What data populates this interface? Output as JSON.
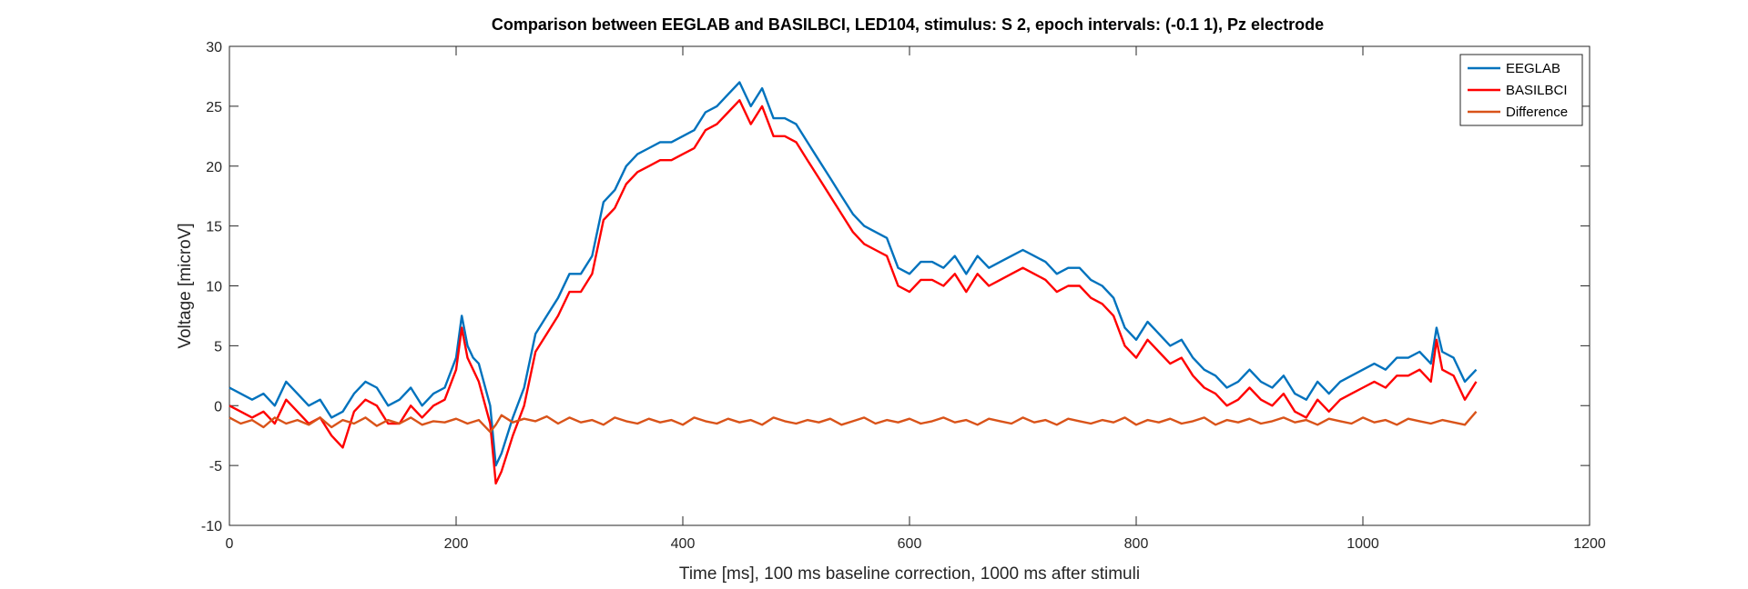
{
  "chart_data": {
    "type": "line",
    "title": "Comparison between EEGLAB and BASILBCI, LED104, stimulus: S  2, epoch intervals: (-0.1 1), Pz electrode",
    "xlabel": "Time [ms], 100 ms baseline correction, 1000 ms after stimuli",
    "ylabel": "Voltage [microV]",
    "xlim": [
      0,
      1200
    ],
    "ylim": [
      -10,
      30
    ],
    "xticks": [
      0,
      200,
      400,
      600,
      800,
      1000,
      1200
    ],
    "yticks": [
      -10,
      -5,
      0,
      5,
      10,
      15,
      20,
      25,
      30
    ],
    "xtick_labels": [
      "0",
      "200",
      "400",
      "600",
      "800",
      "1000",
      "1200"
    ],
    "ytick_labels": [
      "-10",
      "-5",
      "0",
      "5",
      "10",
      "15",
      "20",
      "25",
      "30"
    ],
    "grid": false,
    "legend_position": "top-right",
    "series": [
      {
        "name": "EEGLAB",
        "color": "#0072BD",
        "x": [
          0,
          10,
          20,
          30,
          40,
          50,
          60,
          70,
          80,
          90,
          100,
          110,
          120,
          130,
          140,
          150,
          160,
          170,
          180,
          190,
          200,
          205,
          210,
          215,
          220,
          230,
          235,
          240,
          250,
          260,
          270,
          280,
          290,
          300,
          310,
          320,
          330,
          340,
          350,
          360,
          370,
          380,
          390,
          400,
          410,
          420,
          430,
          440,
          450,
          460,
          470,
          480,
          490,
          500,
          510,
          520,
          530,
          540,
          550,
          560,
          570,
          580,
          590,
          600,
          610,
          620,
          630,
          640,
          650,
          660,
          670,
          680,
          690,
          700,
          710,
          720,
          730,
          740,
          750,
          760,
          770,
          780,
          790,
          800,
          810,
          820,
          830,
          840,
          850,
          860,
          870,
          880,
          890,
          900,
          910,
          920,
          930,
          940,
          950,
          960,
          970,
          980,
          990,
          1000,
          1010,
          1020,
          1030,
          1040,
          1050,
          1060,
          1065,
          1070,
          1080,
          1090,
          1100
        ],
        "y": [
          1.5,
          1.0,
          0.5,
          1.0,
          0.0,
          2.0,
          1.0,
          0.0,
          0.5,
          -1.0,
          -0.5,
          1.0,
          2.0,
          1.5,
          0.0,
          0.5,
          1.5,
          0.0,
          1.0,
          1.5,
          4.0,
          7.5,
          5.0,
          4.0,
          3.5,
          0.0,
          -5.0,
          -4.0,
          -1.0,
          1.5,
          6.0,
          7.5,
          9.0,
          11.0,
          11.0,
          12.5,
          17.0,
          18.0,
          20.0,
          21.0,
          21.5,
          22.0,
          22.0,
          22.5,
          23.0,
          24.5,
          25.0,
          26.0,
          27.0,
          25.0,
          26.5,
          24.0,
          24.0,
          23.5,
          22.0,
          20.5,
          19.0,
          17.5,
          16.0,
          15.0,
          14.5,
          14.0,
          11.5,
          11.0,
          12.0,
          12.0,
          11.5,
          12.5,
          11.0,
          12.5,
          11.5,
          12.0,
          12.5,
          13.0,
          12.5,
          12.0,
          11.0,
          11.5,
          11.5,
          10.5,
          10.0,
          9.0,
          6.5,
          5.5,
          7.0,
          6.0,
          5.0,
          5.5,
          4.0,
          3.0,
          2.5,
          1.5,
          2.0,
          3.0,
          2.0,
          1.5,
          2.5,
          1.0,
          0.5,
          2.0,
          1.0,
          2.0,
          2.5,
          3.0,
          3.5,
          3.0,
          4.0,
          4.0,
          4.5,
          3.5,
          6.5,
          4.5,
          4.0,
          2.0,
          3.0
        ]
      },
      {
        "name": "BASILBCI",
        "color": "#FF0000",
        "x": [
          0,
          10,
          20,
          30,
          40,
          50,
          60,
          70,
          80,
          90,
          100,
          110,
          120,
          130,
          140,
          150,
          160,
          170,
          180,
          190,
          200,
          205,
          210,
          215,
          220,
          230,
          235,
          240,
          250,
          260,
          270,
          280,
          290,
          300,
          310,
          320,
          330,
          340,
          350,
          360,
          370,
          380,
          390,
          400,
          410,
          420,
          430,
          440,
          450,
          460,
          470,
          480,
          490,
          500,
          510,
          520,
          530,
          540,
          550,
          560,
          570,
          580,
          590,
          600,
          610,
          620,
          630,
          640,
          650,
          660,
          670,
          680,
          690,
          700,
          710,
          720,
          730,
          740,
          750,
          760,
          770,
          780,
          790,
          800,
          810,
          820,
          830,
          840,
          850,
          860,
          870,
          880,
          890,
          900,
          910,
          920,
          930,
          940,
          950,
          960,
          970,
          980,
          990,
          1000,
          1010,
          1020,
          1030,
          1040,
          1050,
          1060,
          1065,
          1070,
          1080,
          1090,
          1100
        ],
        "y": [
          0.0,
          -0.5,
          -1.0,
          -0.5,
          -1.5,
          0.5,
          -0.5,
          -1.5,
          -1.0,
          -2.5,
          -3.5,
          -0.5,
          0.5,
          0.0,
          -1.5,
          -1.5,
          0.0,
          -1.0,
          0.0,
          0.5,
          3.0,
          6.5,
          4.0,
          3.0,
          2.0,
          -1.5,
          -6.5,
          -5.5,
          -2.5,
          0.0,
          4.5,
          6.0,
          7.5,
          9.5,
          9.5,
          11.0,
          15.5,
          16.5,
          18.5,
          19.5,
          20.0,
          20.5,
          20.5,
          21.0,
          21.5,
          23.0,
          23.5,
          24.5,
          25.5,
          23.5,
          25.0,
          22.5,
          22.5,
          22.0,
          20.5,
          19.0,
          17.5,
          16.0,
          14.5,
          13.5,
          13.0,
          12.5,
          10.0,
          9.5,
          10.5,
          10.5,
          10.0,
          11.0,
          9.5,
          11.0,
          10.0,
          10.5,
          11.0,
          11.5,
          11.0,
          10.5,
          9.5,
          10.0,
          10.0,
          9.0,
          8.5,
          7.5,
          5.0,
          4.0,
          5.5,
          4.5,
          3.5,
          4.0,
          2.5,
          1.5,
          1.0,
          0.0,
          0.5,
          1.5,
          0.5,
          0.0,
          1.0,
          -0.5,
          -1.0,
          0.5,
          -0.5,
          0.5,
          1.0,
          1.5,
          2.0,
          1.5,
          2.5,
          2.5,
          3.0,
          2.0,
          5.5,
          3.0,
          2.5,
          0.5,
          2.0
        ]
      },
      {
        "name": "Difference",
        "color": "#D95319",
        "x": [
          0,
          10,
          20,
          30,
          40,
          50,
          60,
          70,
          80,
          90,
          100,
          110,
          120,
          130,
          140,
          150,
          160,
          170,
          180,
          190,
          200,
          210,
          220,
          230,
          235,
          240,
          250,
          260,
          270,
          280,
          290,
          300,
          310,
          320,
          330,
          340,
          350,
          360,
          370,
          380,
          390,
          400,
          410,
          420,
          430,
          440,
          450,
          460,
          470,
          480,
          490,
          500,
          510,
          520,
          530,
          540,
          550,
          560,
          570,
          580,
          590,
          600,
          610,
          620,
          630,
          640,
          650,
          660,
          670,
          680,
          690,
          700,
          710,
          720,
          730,
          740,
          750,
          760,
          770,
          780,
          790,
          800,
          810,
          820,
          830,
          840,
          850,
          860,
          870,
          880,
          890,
          900,
          910,
          920,
          930,
          940,
          950,
          960,
          970,
          980,
          990,
          1000,
          1010,
          1020,
          1030,
          1040,
          1050,
          1060,
          1070,
          1080,
          1090,
          1100
        ],
        "y": [
          -1.0,
          -1.5,
          -1.2,
          -1.8,
          -1.0,
          -1.5,
          -1.2,
          -1.6,
          -1.0,
          -1.8,
          -1.2,
          -1.5,
          -1.0,
          -1.7,
          -1.2,
          -1.5,
          -1.0,
          -1.6,
          -1.3,
          -1.4,
          -1.1,
          -1.5,
          -1.2,
          -2.2,
          -1.6,
          -0.8,
          -1.4,
          -1.1,
          -1.3,
          -0.9,
          -1.5,
          -1.0,
          -1.4,
          -1.2,
          -1.6,
          -1.0,
          -1.3,
          -1.5,
          -1.1,
          -1.4,
          -1.2,
          -1.6,
          -1.0,
          -1.3,
          -1.5,
          -1.1,
          -1.4,
          -1.2,
          -1.6,
          -1.0,
          -1.3,
          -1.5,
          -1.2,
          -1.4,
          -1.1,
          -1.6,
          -1.3,
          -1.0,
          -1.5,
          -1.2,
          -1.4,
          -1.1,
          -1.5,
          -1.3,
          -1.0,
          -1.4,
          -1.2,
          -1.6,
          -1.1,
          -1.3,
          -1.5,
          -1.0,
          -1.4,
          -1.2,
          -1.6,
          -1.1,
          -1.3,
          -1.5,
          -1.2,
          -1.4,
          -1.0,
          -1.6,
          -1.2,
          -1.4,
          -1.1,
          -1.5,
          -1.3,
          -1.0,
          -1.6,
          -1.2,
          -1.4,
          -1.1,
          -1.5,
          -1.3,
          -1.0,
          -1.4,
          -1.2,
          -1.6,
          -1.1,
          -1.3,
          -1.5,
          -1.0,
          -1.4,
          -1.2,
          -1.6,
          -1.1,
          -1.3,
          -1.5,
          -1.2,
          -1.4,
          -1.6,
          -0.5
        ]
      }
    ]
  }
}
